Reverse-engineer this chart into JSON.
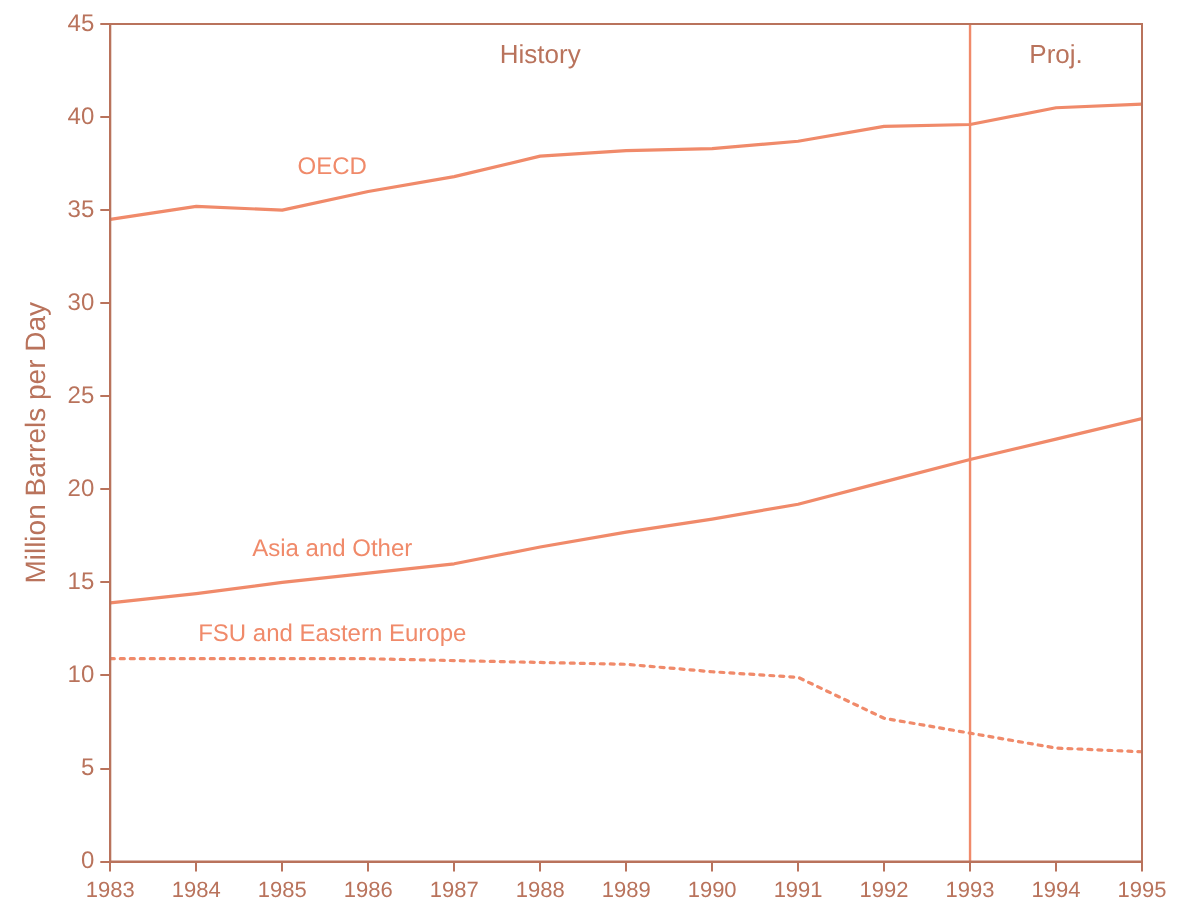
{
  "chart_data": {
    "type": "line",
    "ylabel": "Million Barrels per Day",
    "x": [
      1983,
      1984,
      1985,
      1986,
      1987,
      1988,
      1989,
      1990,
      1991,
      1992,
      1993,
      1994,
      1995
    ],
    "xlim": [
      1983,
      1995
    ],
    "xticks": [
      1983,
      1984,
      1985,
      1986,
      1987,
      1988,
      1989,
      1990,
      1991,
      1992,
      1993,
      1994,
      1995
    ],
    "ylim": [
      0,
      45
    ],
    "yticks": [
      0,
      5,
      10,
      15,
      20,
      25,
      30,
      35,
      40,
      45
    ],
    "grid": false,
    "legend": false,
    "marker": "none",
    "series": [
      {
        "name": "OECD",
        "color": "#f08a6a",
        "line_style": "solid",
        "values": [
          34.5,
          35.2,
          35,
          36,
          36.8,
          37.9,
          38.2,
          38.3,
          38.7,
          39.5,
          39.6,
          40.5,
          40.7
        ]
      },
      {
        "name": "Asia and Other",
        "color": "#f08a6a",
        "line_style": "solid",
        "values": [
          13.9,
          14.4,
          15,
          15.5,
          16,
          16.9,
          17.7,
          18.4,
          19.2,
          20.4,
          21.6,
          22.7,
          23.8
        ]
      },
      {
        "name": "FSU and Eastern Europe",
        "color": "#f08a6a",
        "line_style": "dotted",
        "values": [
          10.9,
          10.9,
          10.9,
          10.9,
          10.8,
          10.7,
          10.6,
          10.2,
          9.9,
          7.7,
          6.9,
          6.1,
          5.9
        ]
      }
    ],
    "ref_lines": [
      {
        "axis": "x",
        "value": 1993,
        "color": "#f08a6a"
      }
    ],
    "annotations": [
      "History",
      "Proj."
    ]
  }
}
